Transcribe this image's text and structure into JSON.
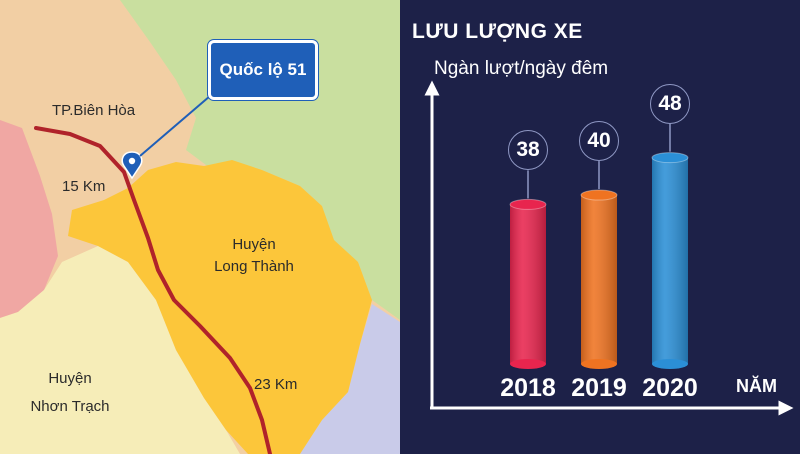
{
  "map": {
    "callout_label": "Quốc lộ 51",
    "labels": {
      "bien_hoa": "TP.Biên Hòa",
      "dist_15": "15 Km",
      "long_thanh_1": "Huyện",
      "long_thanh_2": "Long Thành",
      "dist_23": "23 Km",
      "nhon_trach_1": "Huyện",
      "nhon_trach_2": "Nhơn Trạch"
    },
    "colors": {
      "land_tan": "#f2cfa4",
      "land_green": "#c9df9f",
      "land_pink": "#f0a7a3",
      "land_cream": "#f6edb8",
      "land_orange": "#fcc63a",
      "land_lavender": "#c9cbe9",
      "road": "#b0232a",
      "pin": "#1f5fb8"
    }
  },
  "chart_data": {
    "type": "bar",
    "title": "LƯU LƯỢNG XE",
    "ylabel": "Ngàn lượt/ngày đêm",
    "xlabel": "NĂM",
    "categories": [
      "2018",
      "2019",
      "2020"
    ],
    "values": [
      38,
      40,
      48
    ],
    "bar_colors": [
      "#e8254e",
      "#ef7321",
      "#2b8fd6"
    ],
    "ylim": [
      0,
      50
    ],
    "grid": false
  }
}
